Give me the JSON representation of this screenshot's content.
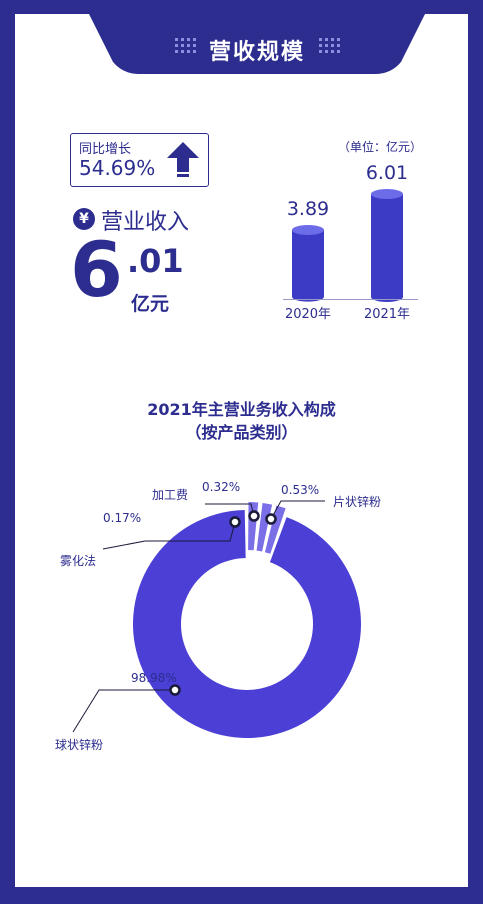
{
  "header": {
    "title": "营收规模"
  },
  "growth": {
    "label": "同比增长",
    "value": "54.69%"
  },
  "revenue": {
    "currency_icon": "¥",
    "label": "营业收入",
    "integer_part": "6",
    "decimal_part": ".01",
    "unit": "亿元"
  },
  "bars": {
    "unit_note": "（单位：亿元）",
    "colors": {
      "fill": "#3b3bc6",
      "top": "#6c6ce8"
    },
    "items": [
      {
        "year": "2020年",
        "value": 3.89,
        "value_label": "3.89"
      },
      {
        "year": "2021年",
        "value": 6.01,
        "value_label": "6.01"
      }
    ]
  },
  "chart_data": {
    "type": "pie",
    "title": "2021年主营业务收入构成",
    "subtitle": "（按产品类别）",
    "colors": {
      "main": "#4b3fd6",
      "minor": "#7b6fe8"
    },
    "slices": [
      {
        "name": "球状锌粉",
        "value": 98.98,
        "value_label": "98.98%"
      },
      {
        "name": "雾化法",
        "value": 0.17,
        "value_label": "0.17%"
      },
      {
        "name": "加工费",
        "value": 0.32,
        "value_label": "0.32%"
      },
      {
        "name": "片状锌粉",
        "value": 0.53,
        "value_label": "0.53%"
      }
    ]
  }
}
